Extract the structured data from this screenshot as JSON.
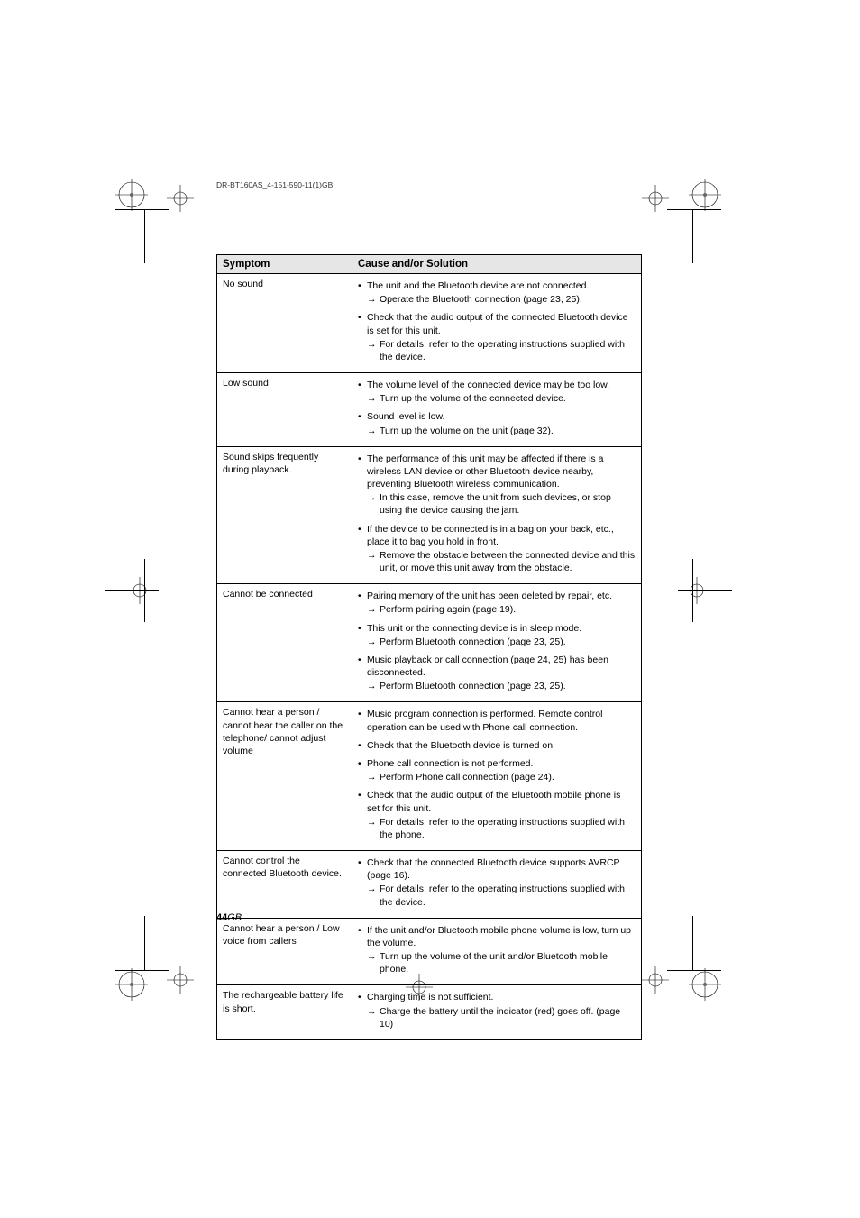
{
  "header_text": "DR-BT160AS_4-151-590-11(1)GB",
  "page_number": "44",
  "page_label_suffix": "GB",
  "table": {
    "columns": [
      "Symptom",
      "Cause and/or Solution"
    ],
    "rows": [
      {
        "symptom": "No sound",
        "solutions": [
          {
            "cause": "The unit and the Bluetooth device are not connected.",
            "fix": "Operate the Bluetooth connection (page 23, 25)."
          },
          {
            "cause": "Check that the audio output of the connected Bluetooth device is set for this unit.",
            "fix": "For details, refer to the operating instructions supplied with the device."
          }
        ]
      },
      {
        "symptom": "Low sound",
        "solutions": [
          {
            "cause": "The volume level of the connected device may be too low.",
            "fix": "Turn up the volume of the connected device."
          },
          {
            "cause": "Sound level is low.",
            "fix": "Turn up the volume on the unit (page 32)."
          }
        ]
      },
      {
        "symptom": "Sound skips frequently during playback.",
        "solutions": [
          {
            "cause": "The performance of this unit may be affected if there is a wireless LAN device or other Bluetooth device nearby, preventing Bluetooth wireless communication.",
            "fix": "In this case, remove the unit from such devices, or stop using the device causing the jam."
          },
          {
            "cause": "If the device to be connected is in a bag on your back, etc., place it to bag you hold in front.",
            "fix": "Remove the obstacle between the connected device and this unit, or move this unit away from the obstacle."
          }
        ]
      },
      {
        "symptom": "Cannot be connected",
        "solutions": [
          {
            "cause": "Pairing memory of the unit has been deleted by repair, etc.",
            "fix": "Perform pairing again (page 19)."
          },
          {
            "cause": "This unit or the connecting device is in sleep mode.",
            "fix": "Perform Bluetooth connection (page 23, 25)."
          },
          {
            "cause": "Music playback or call connection (page 24, 25) has been disconnected.",
            "fix": "Perform Bluetooth connection (page 23, 25)."
          }
        ]
      },
      {
        "symptom": "Cannot hear a person / cannot hear the caller on the telephone/ cannot adjust volume",
        "solutions": [
          {
            "cause": "Music program connection is performed. Remote control operation can be used with Phone call connection.",
            "fix": ""
          },
          {
            "cause": "Check that the Bluetooth device is turned on.",
            "fix": ""
          },
          {
            "cause": "Phone call connection is not performed.",
            "fix": "Perform Phone call connection (page 24)."
          },
          {
            "cause": "Check that the audio output of the Bluetooth mobile phone is set for this unit.",
            "fix": "For details, refer to the operating instructions supplied with the phone."
          }
        ]
      },
      {
        "symptom": "Cannot control the connected Bluetooth device.",
        "solutions": [
          {
            "cause": "Check that the connected Bluetooth device supports AVRCP (page 16).",
            "fix": "For details, refer to the operating instructions supplied with the device."
          }
        ]
      },
      {
        "symptom": "Cannot hear a person / Low voice from callers",
        "solutions": [
          {
            "cause": "If the unit and/or Bluetooth mobile phone volume is low, turn up the volume.",
            "fix": "Turn up the volume of the unit and/or Bluetooth mobile phone."
          }
        ]
      },
      {
        "symptom": "The rechargeable battery life is short.",
        "solutions": [
          {
            "cause": "Charging time is not sufficient.",
            "fix": "Charge the battery until the indicator (red) goes off. (page 10)"
          }
        ]
      }
    ]
  },
  "marks": {
    "stroke": "#000000"
  }
}
